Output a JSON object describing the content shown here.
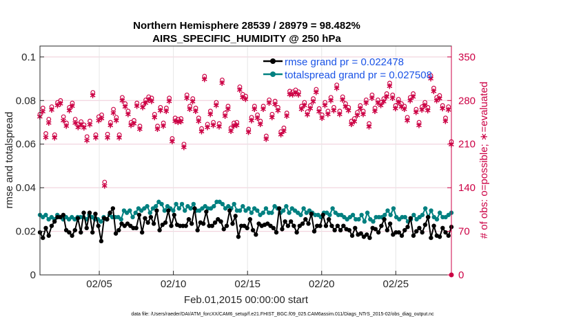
{
  "chart_data": {
    "type": "line",
    "title_line1": "Northern Hemisphere 28539 / 28979 = 98.482%",
    "title_line2": "AIRS_SPECIFIC_HUMIDITY @ 250 hPa",
    "xlabel": "Feb.01,2015 00:00:00 start",
    "ylabel_left": "rmse and totalspread",
    "ylabel_right": "# of obs: o=possible; ∗=evaluated",
    "footnote": "data file: /Users/raeder/DAI/ATM_forcXX/CAM6_setup/f.e21.FHIST_BGC.f09_025.CAM6assim.011/Diags_NTrS_2015-02/obs_diag_output.nc",
    "x_range_days": [
      1.0,
      28.75
    ],
    "x_ticks": [
      {
        "day": 5,
        "label": "02/05"
      },
      {
        "day": 10,
        "label": "02/10"
      },
      {
        "day": 15,
        "label": "02/15"
      },
      {
        "day": 20,
        "label": "02/20"
      },
      {
        "day": 25,
        "label": "02/25"
      }
    ],
    "ylim_left": [
      0,
      0.105
    ],
    "yticks_left": [
      "0",
      "0.02",
      "0.04",
      "0.06",
      "0.08",
      "0.1"
    ],
    "yticks_left_values": [
      0,
      0.02,
      0.04,
      0.06,
      0.08,
      0.1
    ],
    "ylim_right": [
      0,
      367.5
    ],
    "yticks_right": [
      "0",
      "70",
      "140",
      "210",
      "280",
      "350"
    ],
    "yticks_right_values": [
      0,
      70,
      140,
      210,
      280,
      350
    ],
    "grid": true,
    "legend_position": "top-right",
    "series": [
      {
        "name": "rmse grand pr = 0.022478",
        "color": "#000000",
        "axis": "left",
        "values": [
          0.0195,
          0.017,
          0.0215,
          0.018,
          0.0225,
          0.0245,
          0.0265,
          0.0265,
          0.0275,
          0.0205,
          0.0195,
          0.018,
          0.0205,
          0.026,
          0.0195,
          0.0285,
          0.0215,
          0.0285,
          0.0195,
          0.028,
          0.0225,
          0.0155,
          0.026,
          0.0255,
          0.0285,
          0.0305,
          0.019,
          0.0205,
          0.0235,
          0.0225,
          0.0235,
          0.0225,
          0.0215,
          0.0215,
          0.0275,
          0.0195,
          0.026,
          0.024,
          0.0265,
          0.0235,
          0.0295,
          0.0205,
          0.023,
          0.024,
          0.0295,
          0.0225,
          0.0275,
          0.023,
          0.0225,
          0.0225,
          0.0225,
          0.0255,
          0.0235,
          0.0305,
          0.0205,
          0.024,
          0.0235,
          0.029,
          0.0225,
          0.0225,
          0.024,
          0.0255,
          0.0245,
          0.021,
          0.0225,
          0.0295,
          0.0235,
          0.027,
          0.0175,
          0.0225,
          0.0225,
          0.0215,
          0.0255,
          0.0205,
          0.0185,
          0.0235,
          0.0225,
          0.023,
          0.0235,
          0.0225,
          0.0215,
          0.0195,
          0.0305,
          0.021,
          0.0245,
          0.0225,
          0.0245,
          0.0225,
          0.0195,
          0.0225,
          0.0235,
          0.0255,
          0.0235,
          0.028,
          0.02,
          0.0225,
          0.0225,
          0.0275,
          0.0225,
          0.0255,
          0.0225,
          0.0205,
          0.0225,
          0.0205,
          0.0225,
          0.021,
          0.0205,
          0.018,
          0.0215,
          0.0185,
          0.019,
          0.0175,
          0.0185,
          0.017,
          0.0215,
          0.021,
          0.0195,
          0.0225,
          0.0255,
          0.0205,
          0.0235,
          0.0185,
          0.0195,
          0.0195,
          0.018,
          0.0205,
          0.022,
          0.026,
          0.018,
          0.02,
          0.0215,
          0.0195,
          0.023,
          0.0265,
          0.017,
          0.0225,
          0.018,
          0.0175,
          0.0215,
          0.0195,
          0.018,
          0.022
        ]
      },
      {
        "name": "totalspread grand pr = 0.027508",
        "color": "#008080",
        "axis": "left",
        "values": [
          0.0275,
          0.0265,
          0.0275,
          0.0255,
          0.0265,
          0.0255,
          0.0275,
          0.0265,
          0.0255,
          0.0265,
          0.0255,
          0.0265,
          0.0255,
          0.0265,
          0.0265,
          0.0265,
          0.0255,
          0.0275,
          0.0265,
          0.0255,
          0.0255,
          0.0245,
          0.0265,
          0.0255,
          0.0275,
          0.0265,
          0.0265,
          0.0265,
          0.0255,
          0.0295,
          0.0285,
          0.0295,
          0.0265,
          0.0285,
          0.0305,
          0.0295,
          0.0305,
          0.0315,
          0.0285,
          0.0305,
          0.0315,
          0.0335,
          0.0325,
          0.0295,
          0.0315,
          0.0305,
          0.0295,
          0.0325,
          0.0305,
          0.0325,
          0.0295,
          0.0315,
          0.0305,
          0.0325,
          0.0295,
          0.0295,
          0.0305,
          0.0315,
          0.0305,
          0.0305,
          0.0315,
          0.0335,
          0.0335,
          0.0325,
          0.0305,
          0.0315,
          0.0305,
          0.0325,
          0.0295,
          0.0295,
          0.0315,
          0.0295,
          0.0305,
          0.0285,
          0.0305,
          0.0295,
          0.0275,
          0.0285,
          0.0305,
          0.0285,
          0.0285,
          0.0315,
          0.0305,
          0.0285,
          0.0295,
          0.0315,
          0.0285,
          0.0305,
          0.0295,
          0.0285,
          0.0275,
          0.0305,
          0.0285,
          0.0295,
          0.0285,
          0.0275,
          0.0275,
          0.0265,
          0.0285,
          0.0285,
          0.0275,
          0.0305,
          0.0285,
          0.0275,
          0.0275,
          0.0265,
          0.0255,
          0.0265,
          0.0275,
          0.0255,
          0.0255,
          0.0275,
          0.0245,
          0.0285,
          0.0255,
          0.0245,
          0.0265,
          0.0265,
          0.0265,
          0.0275,
          0.0295,
          0.0275,
          0.0305,
          0.0265,
          0.0255,
          0.0265,
          0.0265,
          0.0245,
          0.0255,
          0.0275,
          0.0255,
          0.0265,
          0.0275,
          0.0305,
          0.0265,
          0.0295,
          0.0265,
          0.0255,
          0.0285,
          0.0265,
          0.0265,
          0.0275,
          0.0285
        ]
      }
    ],
    "obs_possible": [
      258,
      268,
      227,
      250,
      270,
      225,
      277,
      280,
      254,
      244,
      269,
      276,
      250,
      242,
      246,
      241,
      222,
      247,
      293,
      225,
      254,
      257,
      149,
      226,
      245,
      266,
      253,
      225,
      285,
      275,
      263,
      245,
      248,
      276,
      239,
      274,
      281,
      286,
      284,
      258,
      239,
      269,
      244,
      268,
      284,
      219,
      252,
      250,
      251,
      210,
      289,
      271,
      283,
      268,
      252,
      235,
      319,
      242,
      263,
      245,
      277,
      243,
      313,
      260,
      271,
      236,
      244,
      245,
      302,
      290,
      287,
      234,
      253,
      271,
      257,
      247,
      271,
      223,
      281,
      258,
      279,
      269,
      230,
      236,
      260,
      295,
      294,
      297,
      294,
      271,
      277,
      262,
      272,
      283,
      298,
      267,
      257,
      277,
      263,
      285,
      269,
      305,
      263,
      286,
      275,
      269,
      247,
      251,
      261,
      272,
      263,
      281,
      243,
      289,
      268,
      281,
      277,
      283,
      291,
      308,
      289,
      272,
      282,
      275,
      271,
      253,
      285,
      291,
      266,
      245,
      270,
      277,
      269,
      320,
      300,
      285,
      288,
      272,
      252,
      270,
      214
    ],
    "obs_evaluated": [
      255,
      263,
      222,
      245,
      266,
      221,
      273,
      276,
      249,
      240,
      265,
      272,
      245,
      238,
      242,
      237,
      217,
      242,
      289,
      221,
      249,
      252,
      144,
      221,
      241,
      261,
      249,
      221,
      281,
      271,
      259,
      241,
      244,
      272,
      235,
      270,
      277,
      282,
      280,
      254,
      235,
      265,
      240,
      264,
      280,
      215,
      248,
      246,
      247,
      206,
      285,
      267,
      279,
      264,
      248,
      231,
      315,
      238,
      259,
      241,
      273,
      239,
      309,
      256,
      267,
      232,
      240,
      241,
      298,
      286,
      283,
      230,
      249,
      267,
      253,
      243,
      267,
      219,
      277,
      254,
      275,
      265,
      226,
      232,
      256,
      291,
      290,
      293,
      290,
      267,
      273,
      258,
      268,
      279,
      294,
      263,
      253,
      273,
      259,
      281,
      265,
      301,
      259,
      282,
      271,
      265,
      243,
      247,
      257,
      268,
      259,
      277,
      239,
      285,
      264,
      277,
      273,
      279,
      287,
      304,
      285,
      268,
      278,
      271,
      267,
      249,
      281,
      287,
      262,
      241,
      266,
      273,
      265,
      316,
      296,
      281,
      284,
      268,
      248,
      266,
      210
    ]
  }
}
